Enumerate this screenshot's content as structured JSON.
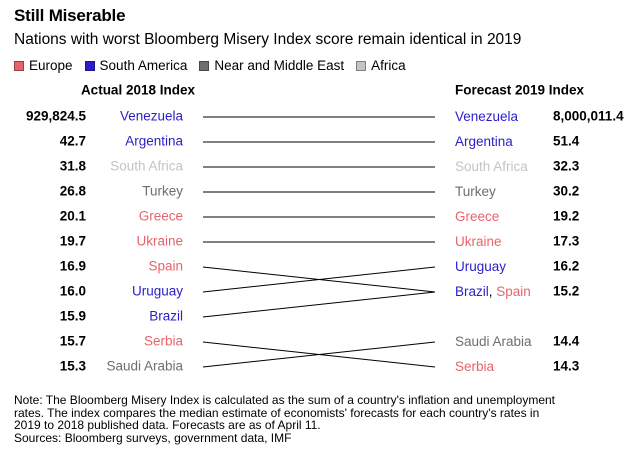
{
  "title": "Still Miserable",
  "subtitle": "Nations with worst Bloomberg Misery Index score remain identical in 2019",
  "legend": [
    {
      "label": "Europe",
      "color": "#e8636b"
    },
    {
      "label": "South America",
      "color": "#2a1ec8"
    },
    {
      "label": "Near and Middle East",
      "color": "#6e6e6e"
    },
    {
      "label": "Africa",
      "color": "#c4c4c4"
    }
  ],
  "note_lines": [
    "Note: The Bloomberg Misery Index is calculated as the sum of a country's inflation and unemployment",
    "rates. The index compares the median estimate of economists' forecasts for each country's rates in",
    "2019 to 2018 published data. Forecasts are as of April 11.",
    "Sources: Bloomberg surveys, government data, IMF"
  ],
  "chart_data": {
    "type": "slope",
    "left_header": "Actual 2018 Index",
    "right_header": "Forecast 2019 Index",
    "region_colors": {
      "Europe": "#e8636b",
      "South America": "#2a1ec8",
      "Near and Middle East": "#6e6e6e",
      "Africa": "#c4c4c4"
    },
    "countries": [
      {
        "name": "Venezuela",
        "region": "South America",
        "actual_2018": 929824.5,
        "forecast_2019": 8000011.4
      },
      {
        "name": "Argentina",
        "region": "South America",
        "actual_2018": 42.7,
        "forecast_2019": 51.4
      },
      {
        "name": "South Africa",
        "region": "Africa",
        "actual_2018": 31.8,
        "forecast_2019": 32.3
      },
      {
        "name": "Turkey",
        "region": "Near and Middle East",
        "actual_2018": 26.8,
        "forecast_2019": 30.2
      },
      {
        "name": "Greece",
        "region": "Europe",
        "actual_2018": 20.1,
        "forecast_2019": 19.2
      },
      {
        "name": "Ukraine",
        "region": "Europe",
        "actual_2018": 19.7,
        "forecast_2019": 17.3
      },
      {
        "name": "Spain",
        "region": "Europe",
        "actual_2018": 16.9,
        "forecast_2019": 15.2
      },
      {
        "name": "Uruguay",
        "region": "South America",
        "actual_2018": 16.0,
        "forecast_2019": 16.2
      },
      {
        "name": "Brazil",
        "region": "South America",
        "actual_2018": 15.9,
        "forecast_2019": 15.2
      },
      {
        "name": "Serbia",
        "region": "Europe",
        "actual_2018": 15.7,
        "forecast_2019": 14.3
      },
      {
        "name": "Saudi Arabia",
        "region": "Near and Middle East",
        "actual_2018": 15.3,
        "forecast_2019": 14.4
      }
    ],
    "left_value_labels": [
      "929,824.5",
      "42.7",
      "31.8",
      "26.8",
      "20.1",
      "19.7",
      "16.9",
      "16.0",
      "15.9",
      "15.7",
      "15.3"
    ],
    "left_name_labels": [
      "Venezuela",
      "Argentina",
      "South Africa",
      "Turkey",
      "Greece",
      "Ukraine",
      "Spain",
      "Uruguay",
      "Brazil",
      "Serbia",
      "Saudi Arabia"
    ],
    "right_rows": [
      {
        "names": [
          "Venezuela"
        ],
        "value_label": "8,000,011.4"
      },
      {
        "names": [
          "Argentina"
        ],
        "value_label": "51.4"
      },
      {
        "names": [
          "South Africa"
        ],
        "value_label": "32.3"
      },
      {
        "names": [
          "Turkey"
        ],
        "value_label": "30.2"
      },
      {
        "names": [
          "Greece"
        ],
        "value_label": "19.2"
      },
      {
        "names": [
          "Ukraine"
        ],
        "value_label": "17.3"
      },
      {
        "names": [
          "Uruguay"
        ],
        "value_label": "16.2"
      },
      {
        "names": [
          "Brazil",
          "Spain"
        ],
        "value_label": "15.2"
      },
      {
        "names": [],
        "value_label": ""
      },
      {
        "names": [
          "Saudi Arabia"
        ],
        "value_label": "14.4"
      },
      {
        "names": [
          "Serbia"
        ],
        "value_label": "14.3"
      }
    ]
  }
}
